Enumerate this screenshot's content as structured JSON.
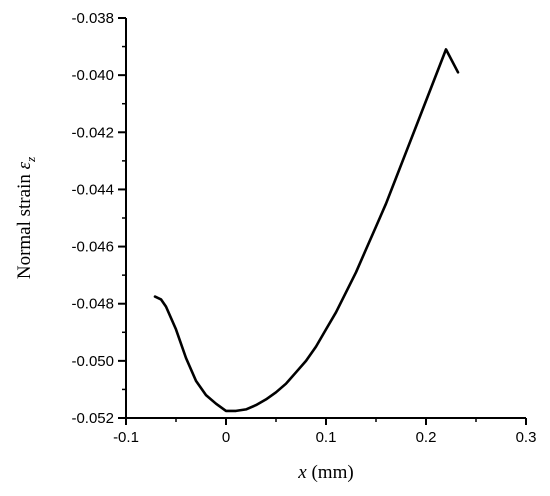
{
  "chart_data": {
    "type": "line",
    "xlabel_var": "x",
    "xlabel_unit": " (mm)",
    "ylabel_main": "Normal strain ",
    "ylabel_symbol": "ε",
    "ylabel_sub": "z",
    "xlim": [
      -0.1,
      0.3
    ],
    "ylim": [
      -0.052,
      -0.038
    ],
    "x_ticks": [
      -0.1,
      0,
      0.1,
      0.2,
      0.3
    ],
    "x_tick_labels": [
      "-0.1",
      "0",
      "0.1",
      "0.2",
      "0.3"
    ],
    "y_ticks": [
      -0.052,
      -0.05,
      -0.048,
      -0.046,
      -0.044,
      -0.042,
      -0.04,
      -0.038
    ],
    "y_tick_labels": [
      "-0.052",
      "-0.050",
      "-0.048",
      "-0.046",
      "-0.044",
      "-0.042",
      "-0.040",
      "-0.038"
    ],
    "grid": false,
    "series": [
      {
        "color": "#000000",
        "points": [
          [
            -0.071,
            -0.04775
          ],
          [
            -0.065,
            -0.04785
          ],
          [
            -0.06,
            -0.0481
          ],
          [
            -0.05,
            -0.0489
          ],
          [
            -0.04,
            -0.0499
          ],
          [
            -0.03,
            -0.0507
          ],
          [
            -0.02,
            -0.0512
          ],
          [
            -0.01,
            -0.0515
          ],
          [
            0.0,
            -0.05175
          ],
          [
            0.01,
            -0.05175
          ],
          [
            0.02,
            -0.0517
          ],
          [
            0.03,
            -0.05155
          ],
          [
            0.04,
            -0.05135
          ],
          [
            0.05,
            -0.0511
          ],
          [
            0.06,
            -0.0508
          ],
          [
            0.07,
            -0.0504
          ],
          [
            0.08,
            -0.05
          ],
          [
            0.09,
            -0.0495
          ],
          [
            0.1,
            -0.0489
          ],
          [
            0.11,
            -0.0483
          ],
          [
            0.12,
            -0.0476
          ],
          [
            0.13,
            -0.0469
          ],
          [
            0.14,
            -0.0461
          ],
          [
            0.15,
            -0.0453
          ],
          [
            0.16,
            -0.0445
          ],
          [
            0.17,
            -0.0436
          ],
          [
            0.18,
            -0.0427
          ],
          [
            0.19,
            -0.0418
          ],
          [
            0.2,
            -0.0409
          ],
          [
            0.21,
            -0.04
          ],
          [
            0.22,
            -0.0391
          ],
          [
            0.232,
            -0.0399
          ]
        ]
      }
    ]
  }
}
